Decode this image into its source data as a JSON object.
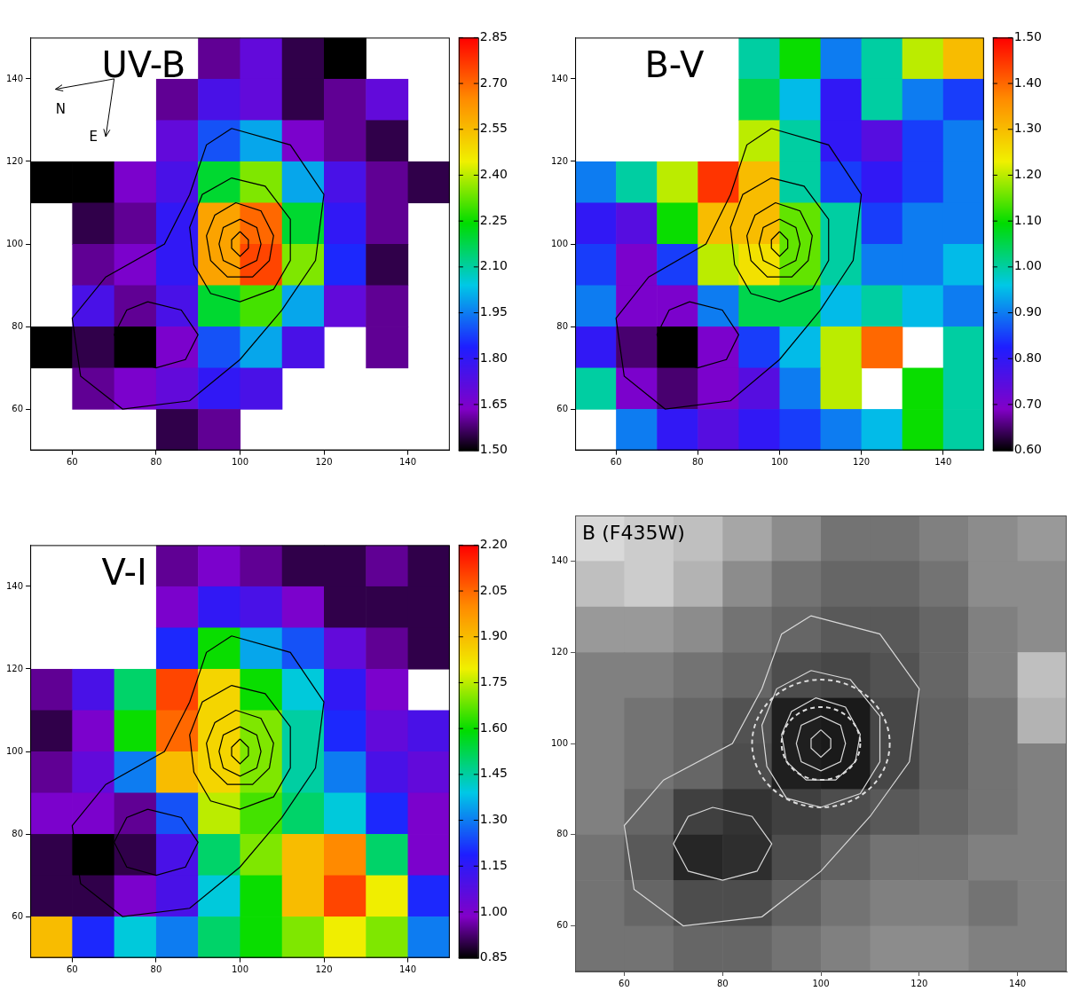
{
  "chart_data": [
    {
      "type": "heatmap",
      "title": "UV-B",
      "xlim": [
        50,
        150
      ],
      "ylim": [
        50,
        150
      ],
      "xticks": [
        60,
        80,
        100,
        120,
        140
      ],
      "yticks": [
        60,
        80,
        100,
        120,
        140
      ],
      "grid": false,
      "x_bins": [
        50,
        60,
        70,
        80,
        90,
        100,
        110,
        120,
        130,
        140,
        150
      ],
      "y_bins": [
        150,
        140,
        130,
        120,
        110,
        100,
        90,
        80,
        70,
        60,
        50
      ],
      "cells": [
        [
          null,
          null,
          null,
          null,
          1.6,
          1.7,
          1.55,
          1.5,
          null,
          null
        ],
        [
          null,
          null,
          null,
          1.6,
          1.75,
          1.7,
          1.55,
          1.6,
          1.7,
          null
        ],
        [
          null,
          null,
          null,
          1.7,
          1.9,
          2.0,
          1.65,
          1.6,
          1.55,
          null
        ],
        [
          1.5,
          1.5,
          1.65,
          1.75,
          2.2,
          2.35,
          2.0,
          1.75,
          1.6,
          1.55
        ],
        [
          null,
          1.55,
          1.6,
          1.8,
          2.6,
          2.7,
          2.2,
          1.8,
          1.6,
          null
        ],
        [
          null,
          1.6,
          1.65,
          1.8,
          2.6,
          2.75,
          2.35,
          1.85,
          1.55,
          null
        ],
        [
          null,
          1.75,
          1.6,
          1.75,
          2.2,
          2.3,
          2.0,
          1.7,
          1.6,
          null
        ],
        [
          1.5,
          1.55,
          1.5,
          1.65,
          1.9,
          2.0,
          1.75,
          null,
          1.6,
          null
        ],
        [
          null,
          1.6,
          1.65,
          1.7,
          1.8,
          1.75,
          null,
          null,
          null,
          null
        ],
        [
          null,
          null,
          null,
          1.55,
          1.6,
          null,
          null,
          null,
          null,
          null
        ]
      ],
      "colorbar": {
        "range": [
          1.5,
          2.85
        ],
        "ticks": [
          {
            "value": 1.5,
            "label": "1.50"
          },
          {
            "value": 1.65,
            "label": "1.65"
          },
          {
            "value": 1.8,
            "label": "1.80"
          },
          {
            "value": 1.95,
            "label": "1.95"
          },
          {
            "value": 2.1,
            "label": "2.10"
          },
          {
            "value": 2.25,
            "label": "2.25"
          },
          {
            "value": 2.4,
            "label": "2.40"
          },
          {
            "value": 2.55,
            "label": "2.55"
          },
          {
            "value": 2.7,
            "label": "2.70"
          },
          {
            "value": 2.85,
            "label": "2.85"
          }
        ]
      },
      "compass": {
        "labels": [
          "N",
          "E"
        ]
      }
    },
    {
      "type": "heatmap",
      "title": "B-V",
      "xlim": [
        50,
        150
      ],
      "ylim": [
        50,
        150
      ],
      "xticks": [
        60,
        80,
        100,
        120,
        140
      ],
      "yticks": [
        60,
        80,
        100,
        120,
        140
      ],
      "grid": false,
      "x_bins": [
        50,
        60,
        70,
        80,
        90,
        100,
        110,
        120,
        130,
        140,
        150
      ],
      "y_bins": [
        150,
        140,
        130,
        120,
        110,
        100,
        90,
        80,
        70,
        60,
        50
      ],
      "cells": [
        [
          null,
          null,
          null,
          null,
          1.0,
          1.1,
          0.9,
          1.0,
          1.2,
          1.3
        ],
        [
          null,
          null,
          null,
          null,
          1.05,
          0.95,
          0.8,
          1.0,
          0.9,
          0.85
        ],
        [
          null,
          null,
          null,
          null,
          1.2,
          1.0,
          0.8,
          0.75,
          0.85,
          0.9
        ],
        [
          0.9,
          1.0,
          1.2,
          1.45,
          1.3,
          1.0,
          0.85,
          0.8,
          0.85,
          0.9
        ],
        [
          0.8,
          0.75,
          1.1,
          1.3,
          1.3,
          1.15,
          1.0,
          0.85,
          0.9,
          0.9
        ],
        [
          0.85,
          0.7,
          0.85,
          1.2,
          1.25,
          1.15,
          1.0,
          0.9,
          0.9,
          0.95
        ],
        [
          0.9,
          0.7,
          0.7,
          0.9,
          1.05,
          1.05,
          0.95,
          1.0,
          0.95,
          0.9
        ],
        [
          0.8,
          0.65,
          0.6,
          0.7,
          0.85,
          0.95,
          1.2,
          1.4,
          null,
          1.0
        ],
        [
          1.0,
          0.7,
          0.65,
          0.7,
          0.75,
          0.9,
          1.2,
          null,
          1.1,
          1.0
        ],
        [
          null,
          0.9,
          0.8,
          0.75,
          0.8,
          0.85,
          0.9,
          0.95,
          1.1,
          1.0
        ]
      ],
      "colorbar": {
        "range": [
          0.6,
          1.5
        ],
        "ticks": [
          {
            "value": 0.6,
            "label": "0.60"
          },
          {
            "value": 0.7,
            "label": "0.70"
          },
          {
            "value": 0.8,
            "label": "0.80"
          },
          {
            "value": 0.9,
            "label": "0.90"
          },
          {
            "value": 1.0,
            "label": "1.00"
          },
          {
            "value": 1.1,
            "label": "1.10"
          },
          {
            "value": 1.2,
            "label": "1.20"
          },
          {
            "value": 1.3,
            "label": "1.30"
          },
          {
            "value": 1.4,
            "label": "1.40"
          },
          {
            "value": 1.5,
            "label": "1.50"
          }
        ]
      }
    },
    {
      "type": "heatmap",
      "title": "V-I",
      "xlim": [
        50,
        150
      ],
      "ylim": [
        50,
        150
      ],
      "xticks": [
        60,
        80,
        100,
        120,
        140
      ],
      "yticks": [
        60,
        80,
        100,
        120,
        140
      ],
      "grid": false,
      "x_bins": [
        50,
        60,
        70,
        80,
        90,
        100,
        110,
        120,
        130,
        140,
        150
      ],
      "y_bins": [
        150,
        140,
        130,
        120,
        110,
        100,
        90,
        80,
        70,
        60,
        50
      ],
      "cells": [
        [
          null,
          null,
          null,
          0.95,
          1.0,
          0.95,
          0.9,
          0.9,
          0.95,
          0.9
        ],
        [
          null,
          null,
          null,
          1.0,
          1.15,
          1.1,
          1.0,
          0.9,
          0.9,
          0.9
        ],
        [
          null,
          null,
          null,
          1.2,
          1.6,
          1.35,
          1.25,
          1.05,
          0.95,
          0.9
        ],
        [
          0.95,
          1.1,
          1.5,
          2.1,
          1.85,
          1.6,
          1.4,
          1.15,
          1.0,
          null
        ],
        [
          0.9,
          1.0,
          1.6,
          2.05,
          1.85,
          1.7,
          1.45,
          1.2,
          1.05,
          1.1
        ],
        [
          0.95,
          1.05,
          1.3,
          1.9,
          1.85,
          1.7,
          1.45,
          1.3,
          1.1,
          1.05
        ],
        [
          1.0,
          1.0,
          0.95,
          1.25,
          1.75,
          1.65,
          1.5,
          1.4,
          1.2,
          1.0
        ],
        [
          0.9,
          0.85,
          0.9,
          1.1,
          1.5,
          1.7,
          1.9,
          2.0,
          1.5,
          1.0
        ],
        [
          0.9,
          0.9,
          1.0,
          1.1,
          1.4,
          1.6,
          1.9,
          2.1,
          1.8,
          1.2
        ],
        [
          1.9,
          1.2,
          1.4,
          1.3,
          1.5,
          1.6,
          1.7,
          1.8,
          1.7,
          1.3
        ]
      ],
      "colorbar": {
        "range": [
          0.85,
          2.2
        ],
        "ticks": [
          {
            "value": 0.85,
            "label": "0.85"
          },
          {
            "value": 1.0,
            "label": "1.00"
          },
          {
            "value": 1.15,
            "label": "1.15"
          },
          {
            "value": 1.3,
            "label": "1.30"
          },
          {
            "value": 1.45,
            "label": "1.45"
          },
          {
            "value": 1.6,
            "label": "1.60"
          },
          {
            "value": 1.75,
            "label": "1.75"
          },
          {
            "value": 1.9,
            "label": "1.90"
          },
          {
            "value": 2.05,
            "label": "2.05"
          },
          {
            "value": 2.2,
            "label": "2.20"
          }
        ]
      }
    },
    {
      "type": "heatmap",
      "title": "B (F435W)",
      "xlim": [
        50,
        150
      ],
      "ylim": [
        50,
        150
      ],
      "xticks": [
        60,
        80,
        100,
        120,
        140
      ],
      "yticks": [
        60,
        80,
        100,
        120,
        140
      ],
      "grid": false,
      "x_bins": [
        50,
        60,
        70,
        80,
        90,
        100,
        110,
        120,
        130,
        140,
        150
      ],
      "y_bins": [
        150,
        140,
        130,
        120,
        110,
        100,
        90,
        80,
        70,
        60,
        50
      ],
      "zlim": [
        0,
        1
      ],
      "cells": [
        [
          0.85,
          0.8,
          0.75,
          0.65,
          0.55,
          0.45,
          0.45,
          0.5,
          0.55,
          0.6
        ],
        [
          0.75,
          0.8,
          0.7,
          0.55,
          0.45,
          0.4,
          0.4,
          0.45,
          0.55,
          0.55
        ],
        [
          0.6,
          0.6,
          0.55,
          0.45,
          0.4,
          0.35,
          0.35,
          0.4,
          0.5,
          0.55
        ],
        [
          0.5,
          0.5,
          0.45,
          0.4,
          0.3,
          0.28,
          0.32,
          0.4,
          0.5,
          0.75
        ],
        [
          0.5,
          0.45,
          0.4,
          0.32,
          0.12,
          0.1,
          0.28,
          0.38,
          0.45,
          0.7
        ],
        [
          0.5,
          0.45,
          0.4,
          0.3,
          0.12,
          0.1,
          0.28,
          0.38,
          0.45,
          0.5
        ],
        [
          0.5,
          0.4,
          0.25,
          0.2,
          0.25,
          0.3,
          0.35,
          0.4,
          0.45,
          0.5
        ],
        [
          0.45,
          0.35,
          0.15,
          0.18,
          0.3,
          0.38,
          0.45,
          0.45,
          0.5,
          0.5
        ],
        [
          0.45,
          0.4,
          0.3,
          0.3,
          0.38,
          0.45,
          0.5,
          0.5,
          0.45,
          0.5
        ],
        [
          0.45,
          0.45,
          0.4,
          0.4,
          0.45,
          0.5,
          0.55,
          0.55,
          0.5,
          0.5
        ]
      ],
      "apertures": [
        {
          "x": 100,
          "y": 100,
          "r": 8
        },
        {
          "x": 100,
          "y": 100,
          "r": 14
        }
      ]
    }
  ],
  "contours": [
    [
      [
        100,
        103
      ],
      [
        102,
        101
      ],
      [
        102,
        99
      ],
      [
        100,
        97
      ],
      [
        98,
        99
      ],
      [
        98,
        101
      ],
      [
        100,
        103
      ]
    ],
    [
      [
        100,
        106
      ],
      [
        104,
        104
      ],
      [
        105,
        100
      ],
      [
        104,
        96
      ],
      [
        100,
        94
      ],
      [
        96,
        96
      ],
      [
        95,
        100
      ],
      [
        96,
        104
      ],
      [
        100,
        106
      ]
    ],
    [
      [
        99,
        110
      ],
      [
        105,
        108
      ],
      [
        108,
        102
      ],
      [
        107,
        96
      ],
      [
        103,
        92
      ],
      [
        97,
        92
      ],
      [
        93,
        96
      ],
      [
        92,
        102
      ],
      [
        94,
        107
      ],
      [
        99,
        110
      ]
    ],
    [
      [
        98,
        116
      ],
      [
        106,
        114
      ],
      [
        112,
        106
      ],
      [
        112,
        96
      ],
      [
        108,
        89
      ],
      [
        100,
        86
      ],
      [
        93,
        88
      ],
      [
        89,
        95
      ],
      [
        88,
        104
      ],
      [
        91,
        112
      ],
      [
        98,
        116
      ]
    ],
    [
      [
        78,
        86
      ],
      [
        86,
        84
      ],
      [
        90,
        78
      ],
      [
        87,
        72
      ],
      [
        80,
        70
      ],
      [
        73,
        72
      ],
      [
        70,
        78
      ],
      [
        73,
        84
      ],
      [
        78,
        86
      ]
    ],
    [
      [
        98,
        128
      ],
      [
        112,
        124
      ],
      [
        120,
        112
      ],
      [
        118,
        96
      ],
      [
        110,
        84
      ],
      [
        100,
        72
      ],
      [
        88,
        62
      ],
      [
        72,
        60
      ],
      [
        62,
        68
      ],
      [
        60,
        82
      ],
      [
        68,
        92
      ],
      [
        82,
        100
      ],
      [
        88,
        112
      ],
      [
        92,
        124
      ],
      [
        98,
        128
      ]
    ]
  ]
}
